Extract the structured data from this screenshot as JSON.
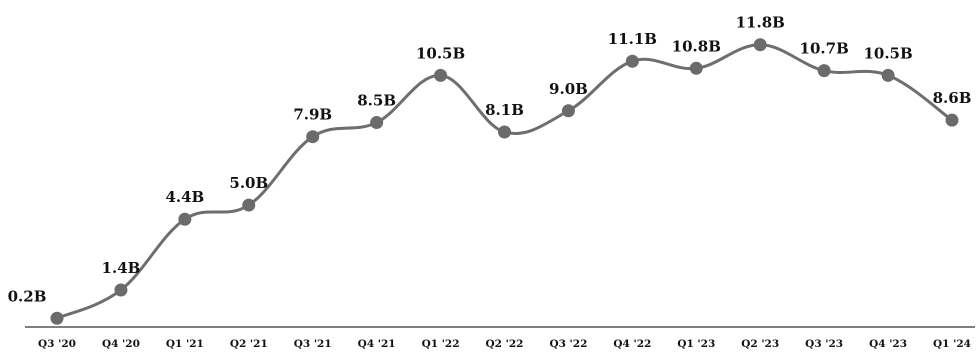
{
  "chart_data": {
    "type": "line",
    "title": "",
    "xlabel": "",
    "ylabel": "",
    "ylim": [
      0,
      12
    ],
    "grid": false,
    "legend": "none",
    "categories": [
      "Q3 '20",
      "Q4 '20",
      "Q1 '21",
      "Q2 '21",
      "Q3 '21",
      "Q4 '21",
      "Q1 '22",
      "Q2 '22",
      "Q3 '22",
      "Q4 '22",
      "Q1 '23",
      "Q2 '23",
      "Q3 '23",
      "Q4 '23",
      "Q1 '24"
    ],
    "series": [
      {
        "values": [
          0.2,
          1.4,
          4.4,
          5.0,
          7.9,
          8.5,
          10.5,
          8.1,
          9.0,
          11.1,
          10.8,
          11.8,
          10.7,
          10.5,
          8.6
        ],
        "labels": [
          "0.2B",
          "1.4B",
          "4.4B",
          "5.0B",
          "7.9B",
          "8.5B",
          "10.5B",
          "8.1B",
          "9.0B",
          "11.1B",
          "10.8B",
          "11.8B",
          "10.7B",
          "10.5B",
          "8.6B"
        ],
        "color": "#6e6e6e"
      }
    ],
    "marker_color": "#6b6b6b",
    "axis_color": "#555555"
  }
}
